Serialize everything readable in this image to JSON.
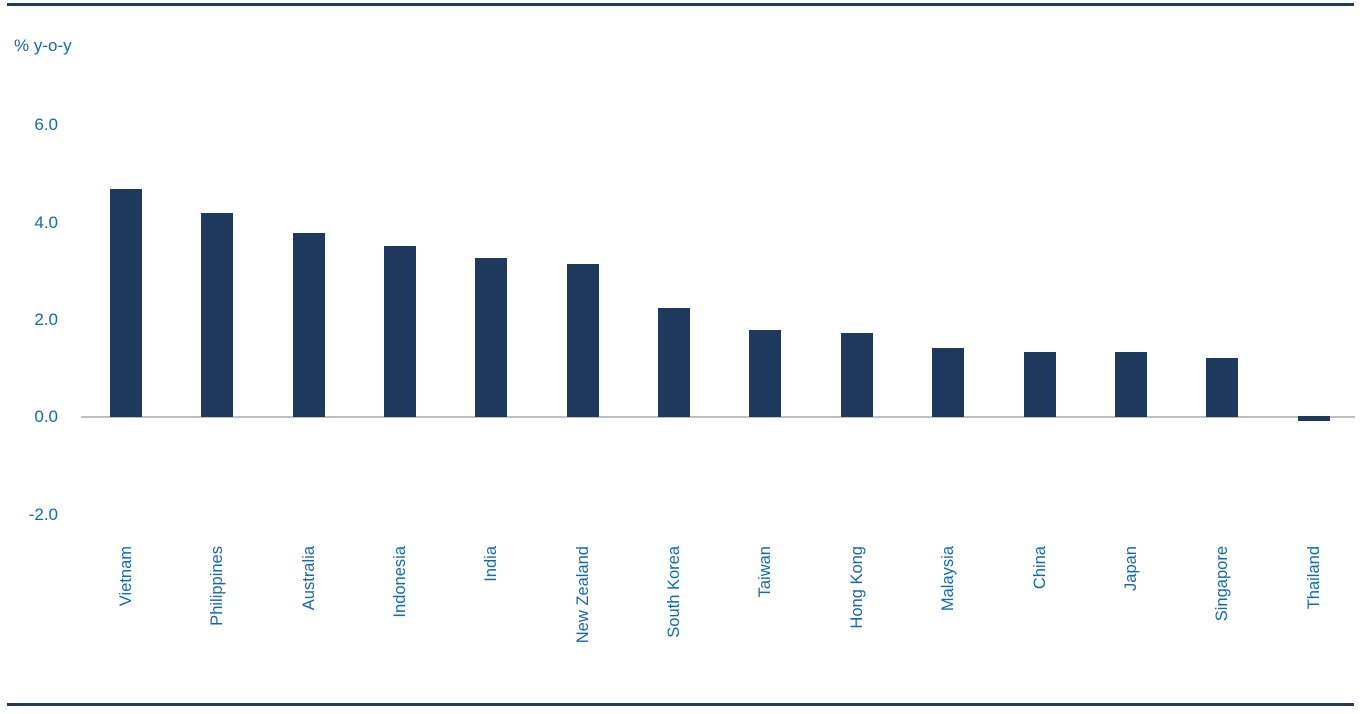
{
  "chart_data": {
    "type": "bar",
    "title": "",
    "ylabel": "% y-o-y",
    "xlabel": "",
    "categories": [
      "Vietnam",
      "Philippines",
      "Australia",
      "Indonesia",
      "India",
      "New Zealand",
      "South Korea",
      "Taiwan",
      "Hong Kong",
      "Malaysia",
      "China",
      "Japan",
      "Singapore",
      "Thailand"
    ],
    "values": [
      4.7,
      4.2,
      3.78,
      3.52,
      3.28,
      3.16,
      2.25,
      1.8,
      1.74,
      1.42,
      1.34,
      1.34,
      1.22,
      -0.1
    ],
    "yticks": [
      6.0,
      4.0,
      2.0,
      0.0,
      -2.0
    ],
    "ytick_labels": [
      "6.0",
      "4.0",
      "2.0",
      "0.0",
      "-2.0"
    ],
    "ylim": [
      -2.8,
      6.6
    ],
    "grid": "off",
    "legend": "none",
    "colors": {
      "bar": "#1e395e",
      "rule": "#203a61",
      "text_blue": "#1467b2",
      "axis_line": "#bfbfbf",
      "background": "#ffffff"
    }
  }
}
